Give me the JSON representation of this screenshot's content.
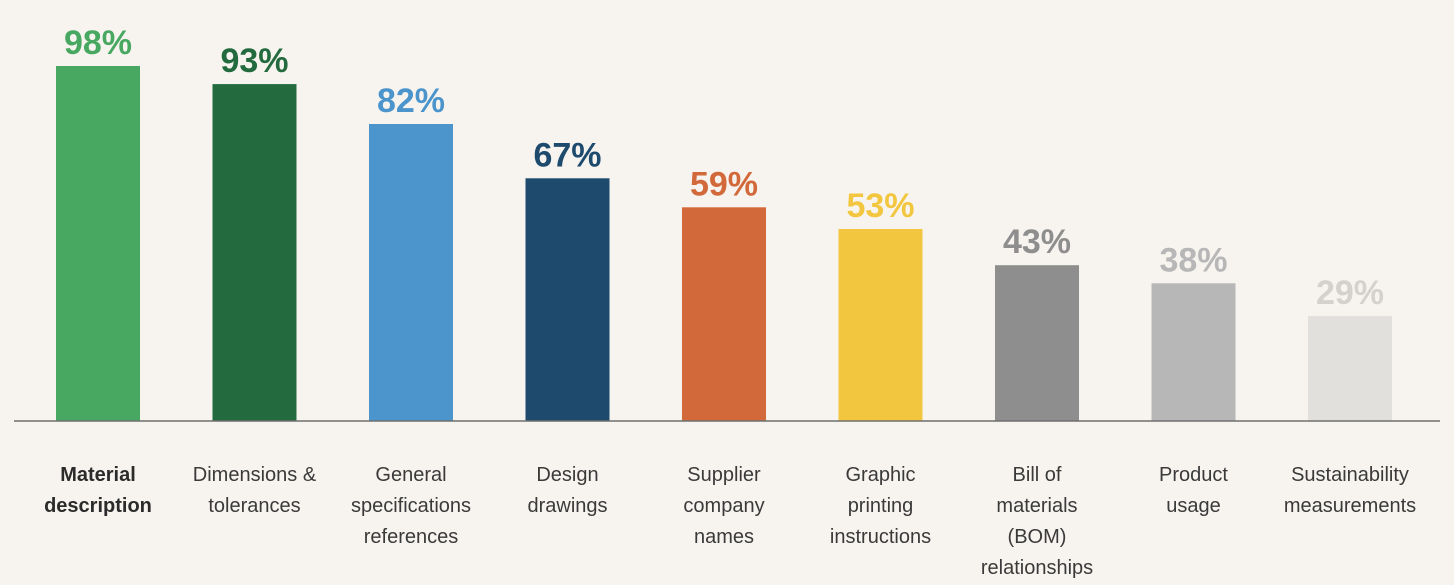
{
  "chart_data": {
    "type": "bar",
    "categories": [
      "Material description",
      "Dimensions & tolerances",
      "General specifications references",
      "Design drawings",
      "Supplier company names",
      "Graphic printing instructions",
      "Bill of materials (BOM) relationships",
      "Product usage",
      "Sustainability measurements"
    ],
    "category_lines": [
      [
        "Material",
        "description"
      ],
      [
        "Dimensions &",
        "tolerances"
      ],
      [
        "General",
        "specifications",
        "references"
      ],
      [
        "Design",
        "drawings"
      ],
      [
        "Supplier",
        "company",
        "names"
      ],
      [
        "Graphic",
        "printing",
        "instructions"
      ],
      [
        "Bill of",
        "materials",
        "(BOM)",
        "relationships"
      ],
      [
        "Product",
        "usage"
      ],
      [
        "Sustainability",
        "measurements"
      ]
    ],
    "values": [
      98,
      93,
      82,
      67,
      59,
      53,
      43,
      38,
      29
    ],
    "value_labels": [
      "98%",
      "93%",
      "82%",
      "67%",
      "59%",
      "53%",
      "43%",
      "38%",
      "29%"
    ],
    "colors": [
      "#48a862",
      "#236b3e",
      "#4b95cc",
      "#1e4a6e",
      "#d2693a",
      "#f3c63f",
      "#8e8e8e",
      "#b7b7b7",
      "#e2e0dc"
    ],
    "label_colors": [
      "#48a862",
      "#236b3e",
      "#4b95cc",
      "#1e4a6e",
      "#d2693a",
      "#f3c63f",
      "#8e8e8e",
      "#b7b7b7",
      "#d5d2cd"
    ],
    "highlighted_category": "Material description",
    "title": "",
    "xlabel": "",
    "ylabel": "",
    "ylim": [
      0,
      100
    ],
    "grid": false,
    "legend": "none"
  }
}
